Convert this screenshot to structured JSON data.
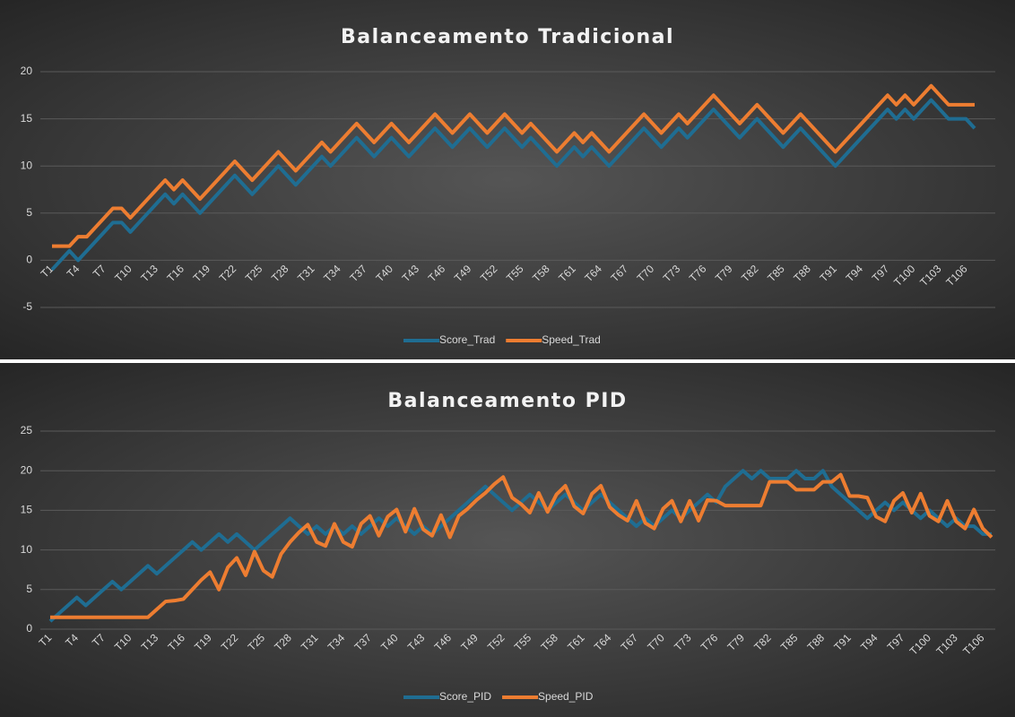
{
  "chart_data": [
    {
      "type": "line",
      "title": "Balanceamento Tradicional",
      "categories": [
        "T1",
        null,
        null,
        "T4",
        null,
        null,
        "T7",
        null,
        null,
        "T10",
        null,
        null,
        "T13",
        null,
        null,
        "T16",
        null,
        null,
        "T19",
        null,
        null,
        "T22",
        null,
        null,
        "T25",
        null,
        null,
        "T28",
        null,
        null,
        "T31",
        null,
        null,
        "T34",
        null,
        null,
        "T37",
        null,
        null,
        "T40",
        null,
        null,
        "T43",
        null,
        null,
        "T46",
        null,
        null,
        "T49",
        null,
        null,
        "T52",
        null,
        null,
        "T55",
        null,
        null,
        "T58",
        null,
        null,
        "T61",
        null,
        null,
        "T64",
        null,
        null,
        "T67",
        null,
        null,
        "T70",
        null,
        null,
        "T73",
        null,
        null,
        "T76",
        null,
        null,
        "T79",
        null,
        null,
        "T82",
        null,
        null,
        "T85",
        null,
        null,
        "T88",
        null,
        null,
        "T91",
        null,
        null,
        "T94",
        null,
        null,
        "T97",
        null,
        null,
        "T100",
        null,
        null,
        "T103",
        null,
        null,
        "T106",
        null
      ],
      "series": [
        {
          "name": "Score_Trad",
          "color": "#1f6d92",
          "values": [
            -1,
            0,
            1,
            0,
            1,
            2,
            3,
            4,
            4,
            3,
            4,
            5,
            6,
            7,
            6,
            7,
            6,
            5,
            6,
            7,
            8,
            9,
            8,
            7,
            8,
            9,
            10,
            9,
            8,
            9,
            10,
            11,
            10,
            11,
            12,
            13,
            12,
            11,
            12,
            13,
            12,
            11,
            12,
            13,
            14,
            13,
            12,
            13,
            14,
            13,
            12,
            13,
            14,
            13,
            12,
            13,
            12,
            11,
            10,
            11,
            12,
            11,
            12,
            11,
            10,
            11,
            12,
            13,
            14,
            13,
            12,
            13,
            14,
            13,
            14,
            15,
            16,
            15,
            14,
            13,
            14,
            15,
            14,
            13,
            12,
            13,
            14,
            13,
            12,
            11,
            10,
            11,
            12,
            13,
            14,
            15,
            16,
            15,
            16,
            15,
            16,
            17,
            16,
            15,
            15,
            15,
            14
          ]
        },
        {
          "name": "Speed_Trad",
          "color": "#ed7d31",
          "values": [
            1.5,
            1.5,
            1.5,
            2.5,
            2.5,
            3.5,
            4.5,
            5.5,
            5.5,
            4.5,
            5.5,
            6.5,
            7.5,
            8.5,
            7.5,
            8.5,
            7.5,
            6.5,
            7.5,
            8.5,
            9.5,
            10.5,
            9.5,
            8.5,
            9.5,
            10.5,
            11.5,
            10.5,
            9.5,
            10.5,
            11.5,
            12.5,
            11.5,
            12.5,
            13.5,
            14.5,
            13.5,
            12.5,
            13.5,
            14.5,
            13.5,
            12.5,
            13.5,
            14.5,
            15.5,
            14.5,
            13.5,
            14.5,
            15.5,
            14.5,
            13.5,
            14.5,
            15.5,
            14.5,
            13.5,
            14.5,
            13.5,
            12.5,
            11.5,
            12.5,
            13.5,
            12.5,
            13.5,
            12.5,
            11.5,
            12.5,
            13.5,
            14.5,
            15.5,
            14.5,
            13.5,
            14.5,
            15.5,
            14.5,
            15.5,
            16.5,
            17.5,
            16.5,
            15.5,
            14.5,
            15.5,
            16.5,
            15.5,
            14.5,
            13.5,
            14.5,
            15.5,
            14.5,
            13.5,
            12.5,
            11.5,
            12.5,
            13.5,
            14.5,
            15.5,
            16.5,
            17.5,
            16.5,
            17.5,
            16.5,
            17.5,
            18.5,
            17.5,
            16.5,
            16.5,
            16.5,
            16.5
          ]
        }
      ],
      "ylim": [
        -5,
        20
      ],
      "yticks": [
        -5,
        0,
        5,
        10,
        15,
        20
      ],
      "grid": true,
      "legend": "bottom"
    },
    {
      "type": "line",
      "title": "Balanceamento PID",
      "categories": [
        "T1",
        null,
        null,
        "T4",
        null,
        null,
        "T7",
        null,
        null,
        "T10",
        null,
        null,
        "T13",
        null,
        null,
        "T16",
        null,
        null,
        "T19",
        null,
        null,
        "T22",
        null,
        null,
        "T25",
        null,
        null,
        "T28",
        null,
        null,
        "T31",
        null,
        null,
        "T34",
        null,
        null,
        "T37",
        null,
        null,
        "T40",
        null,
        null,
        "T43",
        null,
        null,
        "T46",
        null,
        null,
        "T49",
        null,
        null,
        "T52",
        null,
        null,
        "T55",
        null,
        null,
        "T58",
        null,
        null,
        "T61",
        null,
        null,
        "T64",
        null,
        null,
        "T67",
        null,
        null,
        "T70",
        null,
        null,
        "T73",
        null,
        null,
        "T76",
        null,
        null,
        "T79",
        null,
        null,
        "T82",
        null,
        null,
        "T85",
        null,
        null,
        "T88",
        null,
        null,
        "T91",
        null,
        null,
        "T94",
        null,
        null,
        "T97",
        null,
        null,
        "T100",
        null,
        null,
        "T103",
        null,
        null,
        "T106",
        null
      ],
      "series": [
        {
          "name": "Score_PID",
          "color": "#1f6d92",
          "values": [
            1,
            2,
            3,
            4,
            3,
            4,
            5,
            6,
            5,
            6,
            7,
            8,
            7,
            8,
            9,
            10,
            11,
            10,
            11,
            12,
            11,
            12,
            11,
            10,
            11,
            12,
            13,
            14,
            13,
            12,
            13,
            12,
            13,
            12,
            13,
            12,
            13,
            14,
            13,
            14,
            13,
            12,
            13,
            12,
            13,
            14,
            15,
            16,
            17,
            18,
            17,
            16,
            15,
            16,
            17,
            16,
            15,
            16,
            17,
            16,
            15,
            16,
            17,
            16,
            15,
            14,
            13,
            14,
            13,
            14,
            15,
            14,
            15,
            16,
            17,
            16,
            18,
            19,
            20,
            19,
            20,
            19,
            19,
            19,
            20,
            19,
            19,
            20,
            18,
            17,
            16,
            15,
            14,
            15,
            16,
            15,
            16,
            15,
            14,
            15,
            14,
            13,
            14,
            13,
            13,
            12,
            12
          ]
        },
        {
          "name": "Speed_PID",
          "color": "#ed7d31",
          "values": [
            1.5,
            1.5,
            1.5,
            1.5,
            1.5,
            1.5,
            1.5,
            1.5,
            1.5,
            1.5,
            1.5,
            1.5,
            2.5,
            3.5,
            3.6,
            3.8,
            5,
            6.2,
            7.2,
            5,
            7.8,
            9,
            6.8,
            9.8,
            7.4,
            6.6,
            9.5,
            11,
            12.2,
            13.2,
            11,
            10.5,
            13.3,
            11,
            10.4,
            13.3,
            14.3,
            11.8,
            14.2,
            15.1,
            12.3,
            15.2,
            12.6,
            11.8,
            14.4,
            11.6,
            14.3,
            15.2,
            16.3,
            17.2,
            18.3,
            19.2,
            16.6,
            15.8,
            14.7,
            17.2,
            14.8,
            17,
            18.1,
            15.5,
            14.6,
            17.1,
            18.1,
            15.4,
            14.4,
            13.7,
            16.2,
            13.4,
            12.7,
            15.2,
            16.2,
            13.6,
            16.2,
            13.7,
            16.3,
            16.2,
            15.6,
            15.6,
            15.6,
            15.6,
            15.6,
            18.6,
            18.6,
            18.6,
            17.6,
            17.6,
            17.6,
            18.6,
            18.6,
            19.5,
            16.8,
            16.8,
            16.6,
            14.2,
            13.6,
            16.2,
            17.2,
            14.7,
            17.1,
            14.3,
            13.6,
            16.2,
            13.6,
            12.7,
            15.1,
            12.7,
            11.6
          ]
        }
      ],
      "ylim": [
        0,
        25
      ],
      "yticks": [
        0,
        5,
        10,
        15,
        20,
        25
      ],
      "grid": true,
      "legend": "bottom"
    }
  ]
}
